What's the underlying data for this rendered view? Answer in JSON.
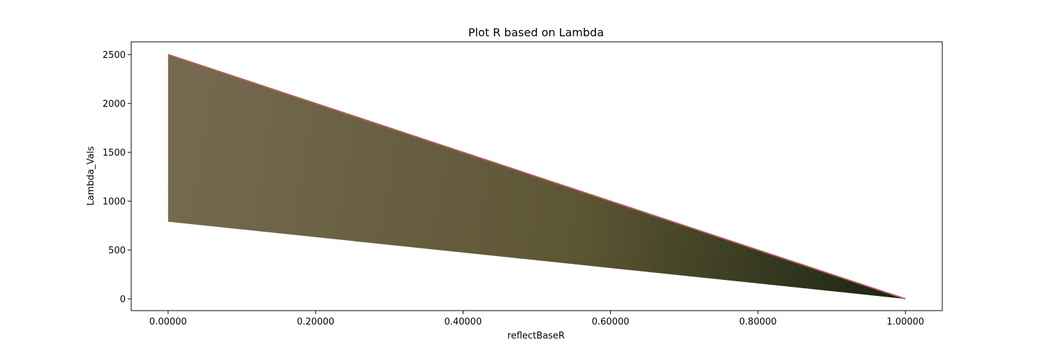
{
  "chart_data": {
    "type": "area",
    "title": "Plot R based on Lambda",
    "xlabel": "reflectBaseR",
    "ylabel": "Lambda_Vals",
    "xlim": [
      -0.05,
      1.05
    ],
    "ylim": [
      -120,
      2630
    ],
    "x_ticks": [
      0,
      0.2,
      0.4,
      0.6,
      0.8,
      1.0
    ],
    "x_tick_labels": [
      "0.00000",
      "0.20000",
      "0.40000",
      "0.60000",
      "0.80000",
      "1.00000"
    ],
    "y_ticks": [
      0,
      500,
      1000,
      1500,
      2000,
      2500
    ],
    "y_tick_labels": [
      "0",
      "500",
      "1000",
      "1500",
      "2000",
      "2500"
    ],
    "upper_boundary": {
      "x": [
        0,
        1
      ],
      "y": [
        2500,
        0
      ]
    },
    "lower_boundary": {
      "x": [
        0,
        1
      ],
      "y": [
        790,
        0
      ]
    },
    "grid": false,
    "colors": {
      "fill_light": "#756a50",
      "fill_mid": "#5d5634",
      "fill_dark": "#1a2410",
      "top_edge": "#b06060",
      "axes": "#000000"
    }
  }
}
